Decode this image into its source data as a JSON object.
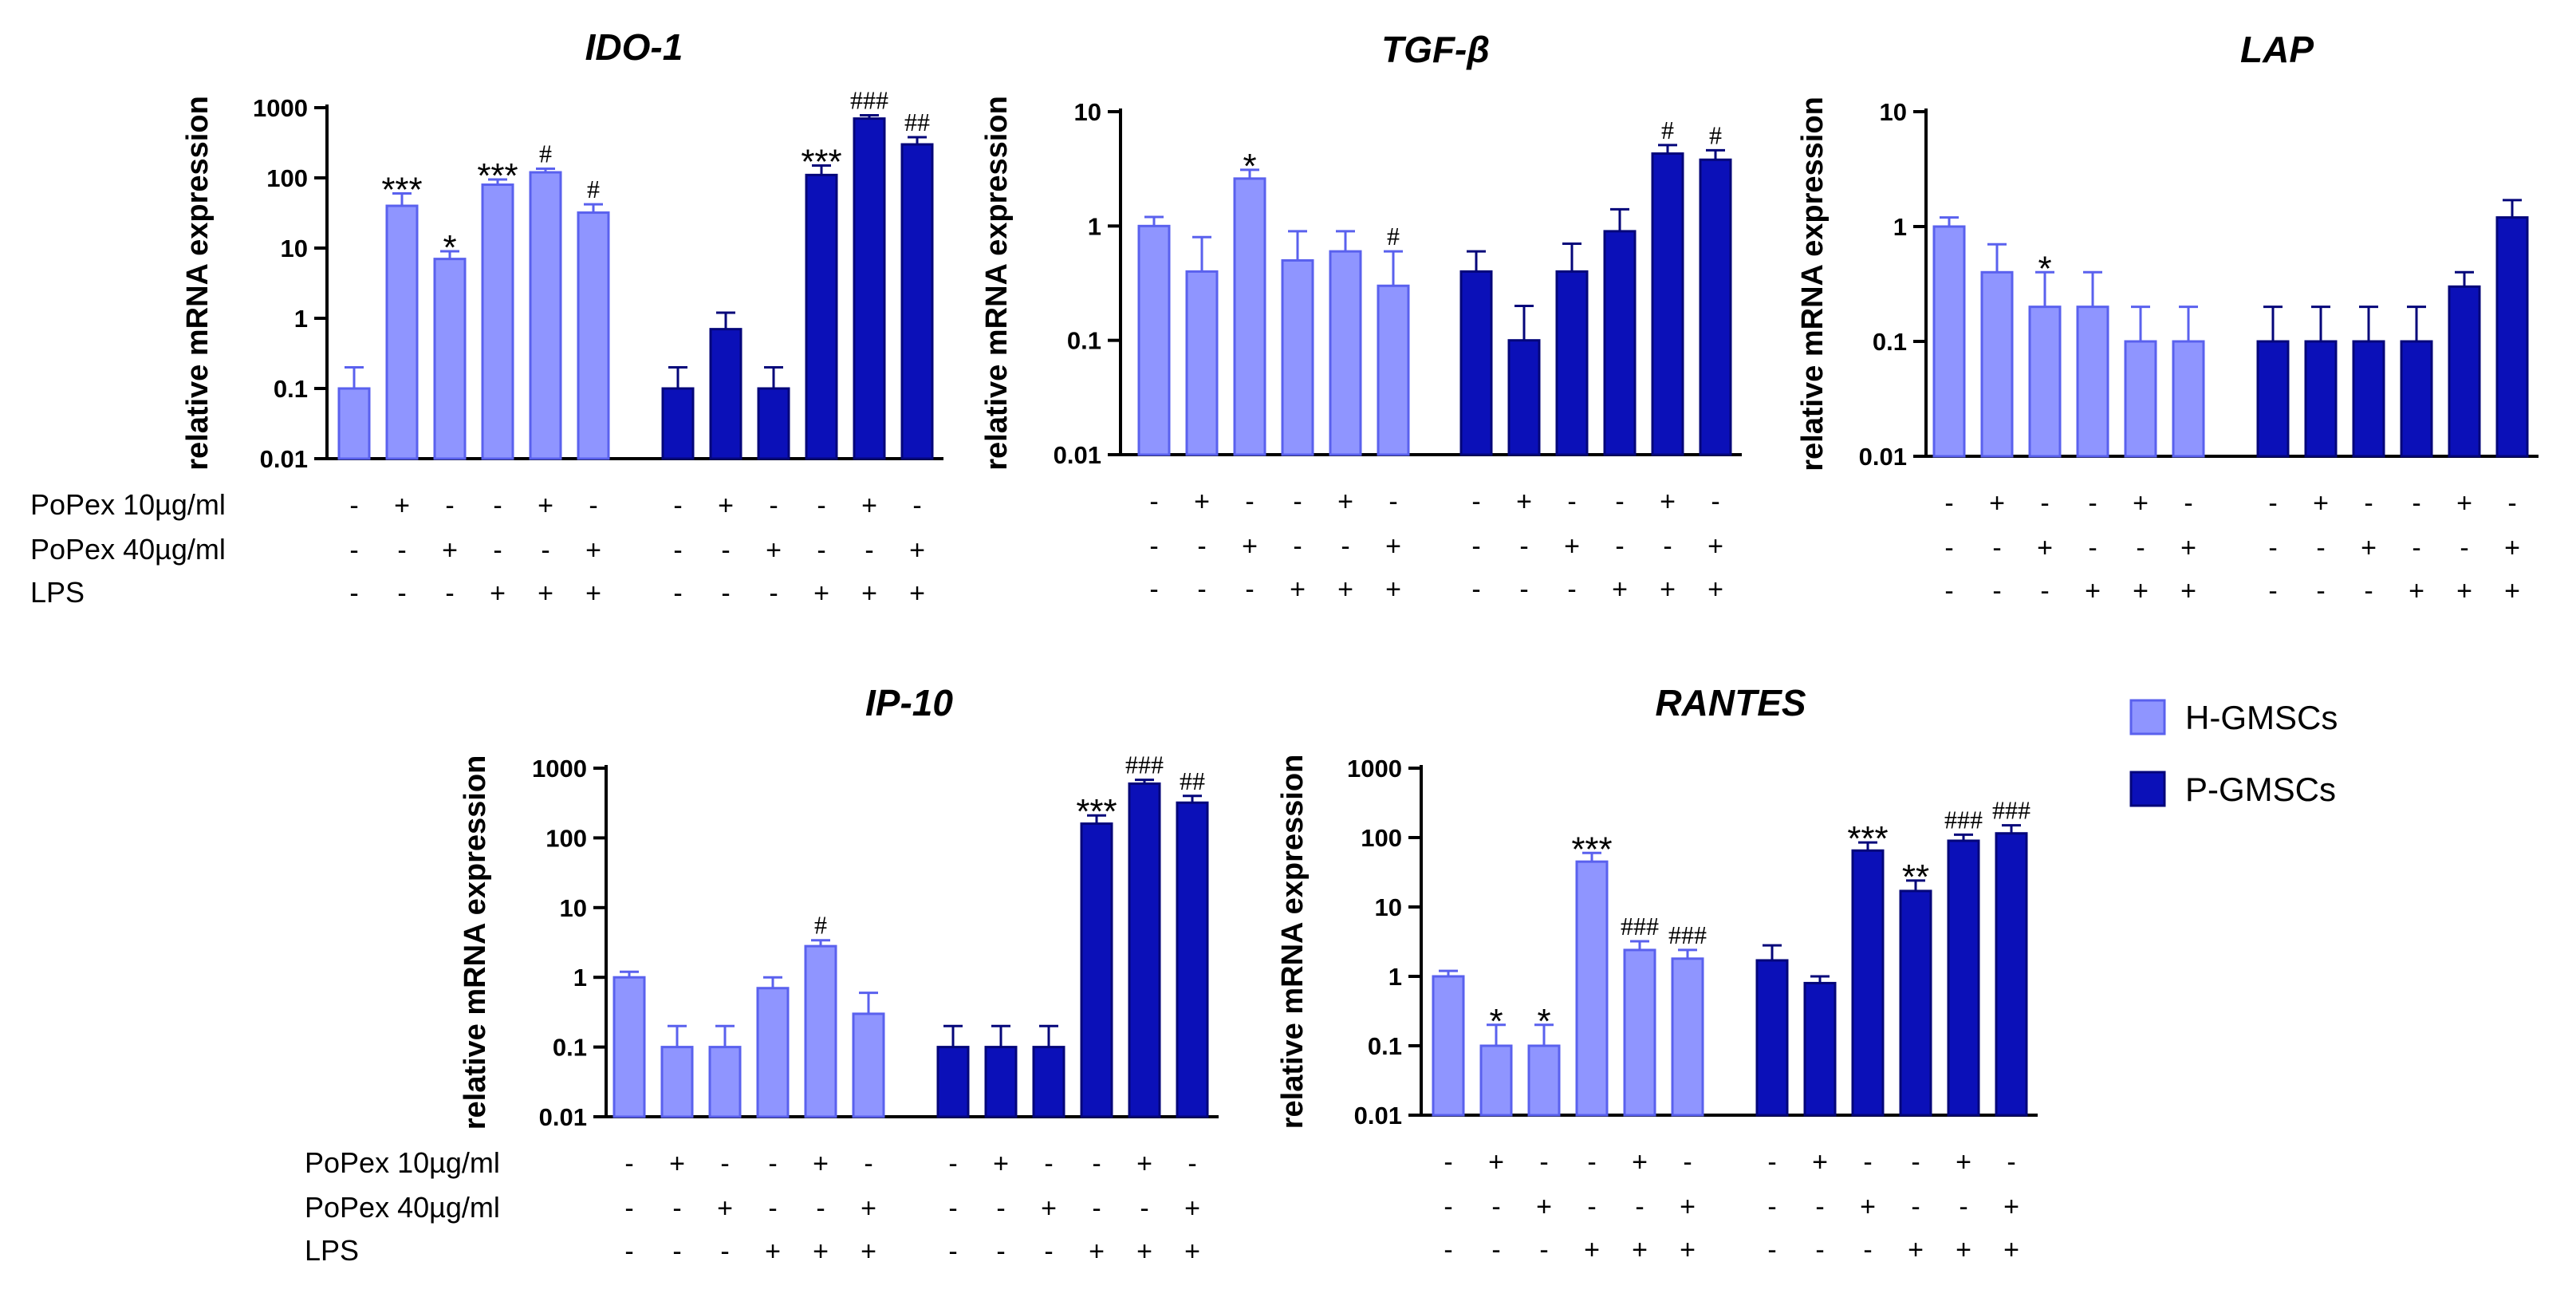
{
  "colors": {
    "h_gmscs": "#8f95ff",
    "h_edge": "#5a61ee",
    "p_gmscs": "#0b10b8",
    "p_edge": "#04067a",
    "axis": "#000000"
  },
  "legend": {
    "placement": "right",
    "items": [
      {
        "label": "H-GMSCs",
        "color_key": "h_gmscs"
      },
      {
        "label": "P-GMSCs",
        "color_key": "p_gmscs"
      }
    ]
  },
  "conditions": {
    "labels": [
      "PoPex 10µg/ml",
      "PoPex 40µg/ml",
      "LPS"
    ],
    "rows": [
      [
        "-",
        "+",
        "-",
        "-",
        "+",
        "-",
        "-",
        "+",
        "-",
        "-",
        "+",
        "-"
      ],
      [
        "-",
        "-",
        "+",
        "-",
        "-",
        "+",
        "-",
        "-",
        "+",
        "-",
        "-",
        "+"
      ],
      [
        "-",
        "-",
        "-",
        "+",
        "+",
        "+",
        "-",
        "-",
        "-",
        "+",
        "+",
        "+"
      ]
    ]
  },
  "chart_data": [
    {
      "type": "bar",
      "title": "IDO-1",
      "ylabel": "relative mRNA expression",
      "yscale": "log",
      "ylim": [
        0.01,
        1000
      ],
      "yticks": [
        "0.01",
        "0.1",
        "1",
        "10",
        "100",
        "1000"
      ],
      "show_condition_labels": true,
      "series": [
        {
          "name": "H-GMSCs",
          "values": [
            0.1,
            40,
            7,
            80,
            120,
            32
          ],
          "errors": [
            0.2,
            60,
            9,
            95,
            135,
            42
          ],
          "annotations": [
            "",
            "***",
            "*",
            "***",
            "#",
            "#"
          ]
        },
        {
          "name": "P-GMSCs",
          "values": [
            0.1,
            0.7,
            0.1,
            110,
            700,
            300
          ],
          "errors": [
            0.2,
            1.2,
            0.2,
            150,
            780,
            380
          ],
          "annotations": [
            "",
            "",
            "",
            "***",
            "###",
            "##"
          ]
        }
      ]
    },
    {
      "type": "bar",
      "title": "TGF-β",
      "ylabel": "relative mRNA expression",
      "yscale": "log",
      "ylim": [
        0.01,
        10
      ],
      "yticks": [
        "0.01",
        "0.1",
        "1",
        "10"
      ],
      "show_condition_labels": false,
      "series": [
        {
          "name": "H-GMSCs",
          "values": [
            1.0,
            0.4,
            2.6,
            0.5,
            0.6,
            0.3
          ],
          "errors": [
            1.2,
            0.8,
            3.1,
            0.9,
            0.9,
            0.6
          ],
          "annotations": [
            "",
            "",
            "*",
            "",
            "",
            "#"
          ]
        },
        {
          "name": "P-GMSCs",
          "values": [
            0.4,
            0.1,
            0.4,
            0.9,
            4.3,
            3.8
          ],
          "errors": [
            0.6,
            0.2,
            0.7,
            1.4,
            5.1,
            4.6
          ],
          "annotations": [
            "",
            "",
            "",
            "",
            "#",
            "#"
          ]
        }
      ]
    },
    {
      "type": "bar",
      "title": "LAP",
      "ylabel": "relative mRNA expression",
      "yscale": "log",
      "ylim": [
        0.01,
        10
      ],
      "yticks": [
        "0.01",
        "0.1",
        "1",
        "10"
      ],
      "show_condition_labels": false,
      "series": [
        {
          "name": "H-GMSCs",
          "values": [
            1.0,
            0.4,
            0.2,
            0.2,
            0.1,
            0.1
          ],
          "errors": [
            1.2,
            0.7,
            0.4,
            0.4,
            0.2,
            0.2
          ],
          "annotations": [
            "",
            "",
            "*",
            "",
            "",
            ""
          ]
        },
        {
          "name": "P-GMSCs",
          "values": [
            0.1,
            0.1,
            0.1,
            0.1,
            0.3,
            1.2
          ],
          "errors": [
            0.2,
            0.2,
            0.2,
            0.2,
            0.4,
            1.7
          ],
          "annotations": [
            "",
            "",
            "",
            "",
            "",
            ""
          ]
        }
      ]
    },
    {
      "type": "bar",
      "title": "IP-10",
      "ylabel": "relative mRNA expression",
      "yscale": "log",
      "ylim": [
        0.01,
        1000
      ],
      "yticks": [
        "0.01",
        "0.1",
        "1",
        "10",
        "100",
        "1000"
      ],
      "show_condition_labels": true,
      "series": [
        {
          "name": "H-GMSCs",
          "values": [
            1.0,
            0.1,
            0.1,
            0.7,
            2.8,
            0.3
          ],
          "errors": [
            1.2,
            0.2,
            0.2,
            1.0,
            3.4,
            0.6
          ],
          "annotations": [
            "",
            "",
            "",
            "",
            "#",
            ""
          ]
        },
        {
          "name": "P-GMSCs",
          "values": [
            0.1,
            0.1,
            0.1,
            160,
            600,
            320
          ],
          "errors": [
            0.2,
            0.2,
            0.2,
            210,
            680,
            400
          ],
          "annotations": [
            "",
            "",
            "",
            "***",
            "###",
            "##"
          ]
        }
      ]
    },
    {
      "type": "bar",
      "title": "RANTES",
      "ylabel": "relative mRNA expression",
      "yscale": "log",
      "ylim": [
        0.01,
        1000
      ],
      "yticks": [
        "0.01",
        "0.1",
        "1",
        "10",
        "100",
        "1000"
      ],
      "show_condition_labels": false,
      "series": [
        {
          "name": "H-GMSCs",
          "values": [
            1.0,
            0.1,
            0.1,
            45,
            2.4,
            1.8
          ],
          "errors": [
            1.2,
            0.2,
            0.2,
            60,
            3.2,
            2.4
          ],
          "annotations": [
            "",
            "*",
            "*",
            "***",
            "###",
            "###"
          ]
        },
        {
          "name": "P-GMSCs",
          "values": [
            1.7,
            0.8,
            65,
            17,
            90,
            115
          ],
          "errors": [
            2.8,
            1.0,
            85,
            24,
            110,
            150
          ],
          "annotations": [
            "",
            "",
            "***",
            "**",
            "###",
            "###"
          ]
        }
      ]
    }
  ]
}
